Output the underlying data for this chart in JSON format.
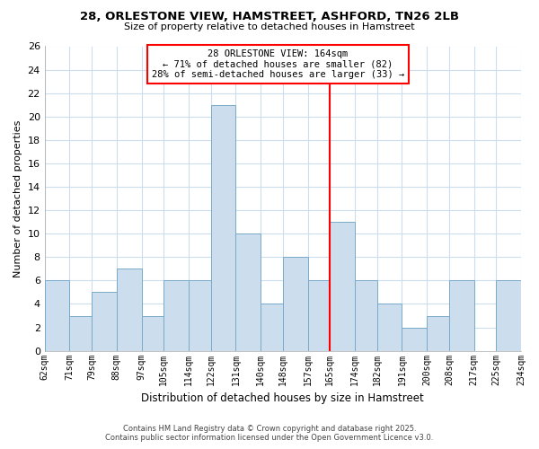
{
  "title": "28, ORLESTONE VIEW, HAMSTREET, ASHFORD, TN26 2LB",
  "subtitle": "Size of property relative to detached houses in Hamstreet",
  "xlabel": "Distribution of detached houses by size in Hamstreet",
  "ylabel": "Number of detached properties",
  "bins": [
    62,
    71,
    79,
    88,
    97,
    105,
    114,
    122,
    131,
    140,
    148,
    157,
    165,
    174,
    182,
    191,
    200,
    208,
    217,
    225,
    234
  ],
  "bin_labels": [
    "62sqm",
    "71sqm",
    "79sqm",
    "88sqm",
    "97sqm",
    "105sqm",
    "114sqm",
    "122sqm",
    "131sqm",
    "140sqm",
    "148sqm",
    "157sqm",
    "165sqm",
    "174sqm",
    "182sqm",
    "191sqm",
    "200sqm",
    "208sqm",
    "217sqm",
    "225sqm",
    "234sqm"
  ],
  "counts": [
    6,
    3,
    5,
    7,
    3,
    6,
    6,
    21,
    10,
    4,
    8,
    6,
    11,
    6,
    4,
    2,
    3,
    6,
    0,
    6
  ],
  "bar_color": "#ccdded",
  "bar_edge_color": "#7aaac8",
  "vline_x": 165,
  "vline_color": "red",
  "annotation_line1": "28 ORLESTONE VIEW: 164sqm",
  "annotation_line2": "← 71% of detached houses are smaller (82)",
  "annotation_line3": "28% of semi-detached houses are larger (33) →",
  "ylim": [
    0,
    26
  ],
  "yticks": [
    0,
    2,
    4,
    6,
    8,
    10,
    12,
    14,
    16,
    18,
    20,
    22,
    24,
    26
  ],
  "bg_color": "#ffffff",
  "plot_bg_color": "#ffffff",
  "grid_color": "#ccddee",
  "footer_line1": "Contains HM Land Registry data © Crown copyright and database right 2025.",
  "footer_line2": "Contains public sector information licensed under the Open Government Licence v3.0."
}
